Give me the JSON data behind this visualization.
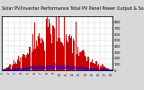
{
  "title": "Solar PV/Inverter Performance Total PV Panel Power Output & Solar Radiation",
  "title_fontsize": 3.5,
  "bg_color": "#d8d8d8",
  "plot_bg": "#ffffff",
  "bar_color": "#cc0000",
  "line_color": "#0000ff",
  "grid_color": "#bbbbbb",
  "ylim": [
    0,
    900
  ],
  "yticks": [
    0,
    100,
    200,
    300,
    400,
    500,
    600,
    700,
    800
  ],
  "ytick_labels": [
    "0",
    "100",
    "200",
    "300",
    "400",
    "500",
    "600",
    "700",
    "800"
  ],
  "n_bars": 144,
  "figsize": [
    1.6,
    1.0
  ],
  "dpi": 100
}
